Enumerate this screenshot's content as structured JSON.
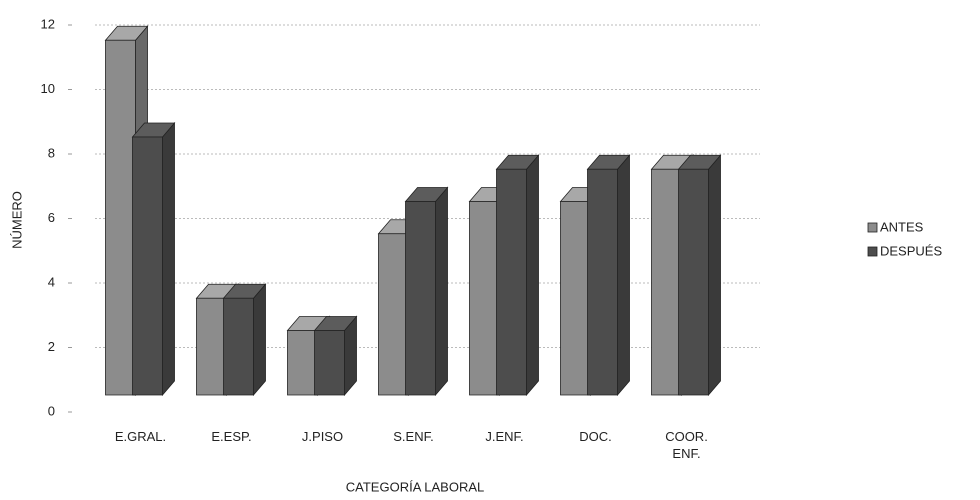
{
  "chart_data": {
    "type": "bar3d",
    "x_label": "CATEGORÍA LABORAL",
    "y_label": "NÚMERO",
    "categories": [
      "E.GRAL.",
      "E.ESP.",
      "J.PISO",
      "S.ENF.",
      "J.ENF.",
      "DOC.",
      "COOR. ENF."
    ],
    "series": [
      {
        "name": "ANTES",
        "color": "#8c8c8c",
        "values": [
          11,
          3,
          2,
          5,
          6,
          6,
          7
        ]
      },
      {
        "name": "DESPUÉS",
        "color": "#4d4d4d",
        "values": [
          8,
          3,
          2,
          6,
          7,
          7,
          7
        ]
      }
    ],
    "ylim": [
      0,
      12
    ],
    "yticks": [
      0,
      2,
      4,
      6,
      8,
      10,
      12
    ],
    "grid": true,
    "legend": "right"
  }
}
